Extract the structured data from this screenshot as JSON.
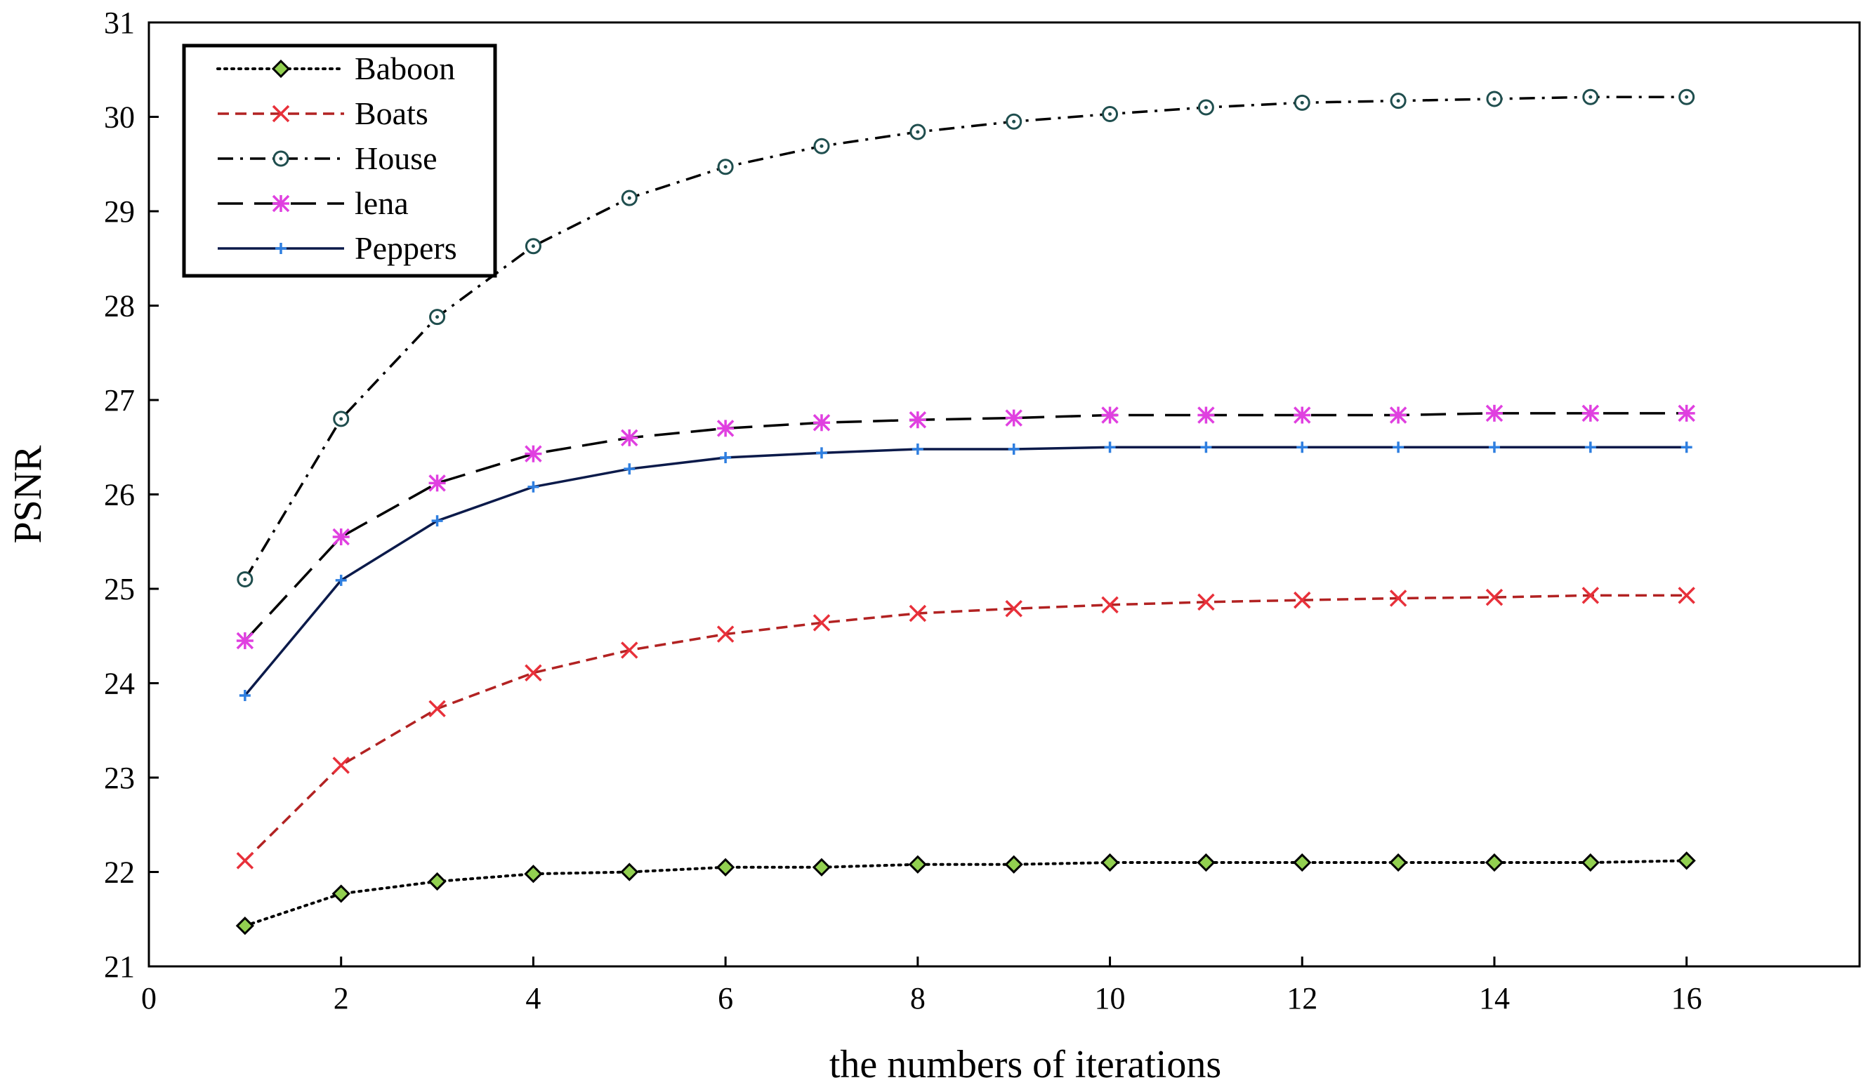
{
  "chart_data": {
    "type": "line",
    "title": "",
    "xlabel": "the numbers of iterations",
    "ylabel": "PSNR",
    "xlim": [
      0,
      17.8
    ],
    "ylim": [
      21,
      31
    ],
    "xticks": [
      0,
      2,
      4,
      6,
      8,
      10,
      12,
      14,
      16
    ],
    "yticks": [
      21,
      22,
      23,
      24,
      25,
      26,
      27,
      28,
      29,
      30,
      31
    ],
    "grid": false,
    "legend_position": "top-left",
    "x": [
      1,
      2,
      3,
      4,
      5,
      6,
      7,
      8,
      9,
      10,
      11,
      12,
      13,
      14,
      15,
      16
    ],
    "series": [
      {
        "name": "Baboon",
        "line_style": "dotted",
        "marker": "diamond",
        "color": "#000000",
        "marker_fill": "#92d050",
        "marker_stroke": "#000000",
        "values": [
          21.43,
          21.77,
          21.9,
          21.98,
          22.0,
          22.05,
          22.05,
          22.08,
          22.08,
          22.1,
          22.1,
          22.1,
          22.1,
          22.1,
          22.1,
          22.12
        ]
      },
      {
        "name": "Boats",
        "line_style": "dashed",
        "marker": "x",
        "color": "#b22222",
        "marker_fill": "none",
        "marker_stroke": "#e8303a",
        "values": [
          22.12,
          23.13,
          23.73,
          24.11,
          24.35,
          24.52,
          24.64,
          24.74,
          24.79,
          24.83,
          24.86,
          24.88,
          24.9,
          24.91,
          24.93,
          24.93
        ]
      },
      {
        "name": "House",
        "line_style": "dashdot",
        "marker": "circle",
        "color": "#000000",
        "marker_fill": "#ffffff",
        "marker_stroke": "#1f4e4e",
        "values": [
          25.1,
          26.8,
          27.88,
          28.63,
          29.14,
          29.47,
          29.69,
          29.84,
          29.95,
          30.03,
          30.1,
          30.15,
          30.17,
          30.19,
          30.21,
          30.21
        ]
      },
      {
        "name": "lena",
        "line_style": "longdash",
        "marker": "asterisk",
        "color": "#000000",
        "marker_fill": "none",
        "marker_stroke": "#e040e0",
        "values": [
          24.45,
          25.55,
          26.12,
          26.43,
          26.6,
          26.7,
          26.76,
          26.79,
          26.81,
          26.84,
          26.84,
          26.84,
          26.84,
          26.86,
          26.86,
          26.86
        ]
      },
      {
        "name": "Peppers",
        "line_style": "solid",
        "marker": "plus",
        "color": "#0b1a4a",
        "marker_fill": "none",
        "marker_stroke": "#2f7fe0",
        "values": [
          23.87,
          25.09,
          25.72,
          26.08,
          26.27,
          26.39,
          26.44,
          26.48,
          26.48,
          26.5,
          26.5,
          26.5,
          26.5,
          26.5,
          26.5,
          26.5
        ]
      }
    ]
  }
}
